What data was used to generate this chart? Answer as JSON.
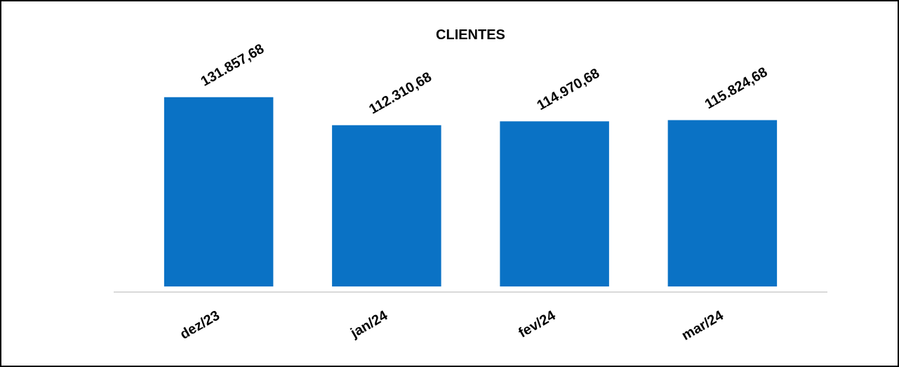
{
  "chart_data": {
    "type": "bar",
    "title": "CLIENTES",
    "categories": [
      "dez/23",
      "jan/24",
      "fev/24",
      "mar/24"
    ],
    "values": [
      131857.68,
      112310.68,
      114970.68,
      115824.68
    ],
    "value_labels": [
      "131.857,68",
      "112.310,68",
      "114.970,68",
      "115.824,68"
    ],
    "color": "#0a72c5",
    "grid": false,
    "legend": false,
    "tick_labels": "x"
  }
}
